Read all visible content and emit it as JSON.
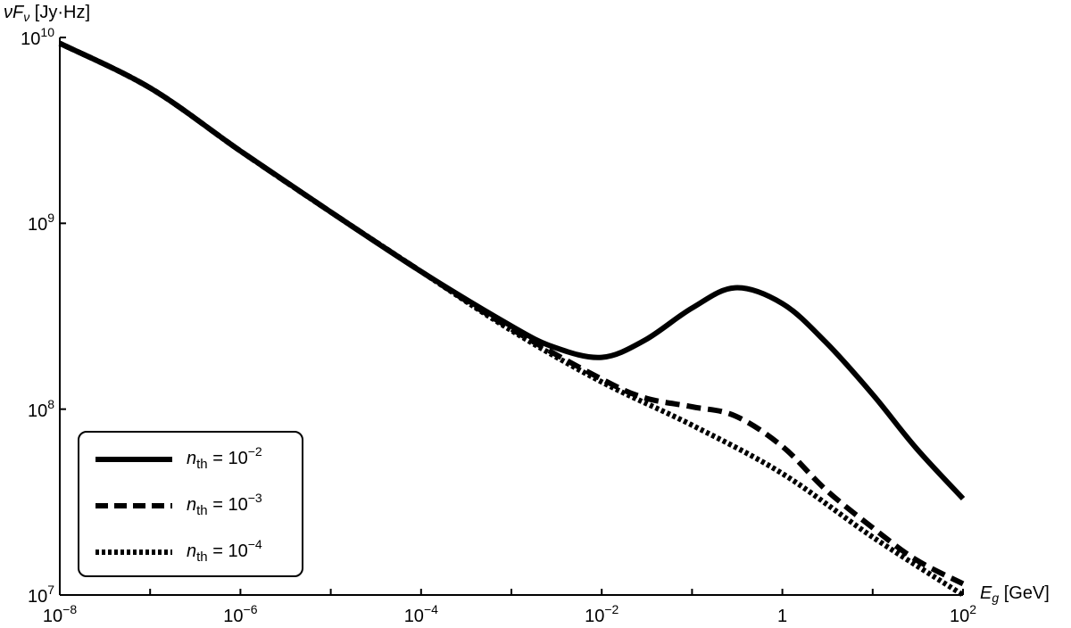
{
  "chart_data": {
    "type": "line",
    "x_scale": "log",
    "y_scale": "log",
    "xlim": [
      1e-08,
      100
    ],
    "ylim": [
      10000000.0,
      10000000000.0
    ],
    "xlabel": {
      "symbol": "E",
      "subscript": "g",
      "unit": "[GeV]"
    },
    "ylabel": {
      "symbol": "νF",
      "subscript": "ν",
      "unit": "[Jy·Hz]"
    },
    "x_ticks": [
      {
        "value": 1e-08,
        "base": "10",
        "exp": "−8"
      },
      {
        "value": 1e-06,
        "base": "10",
        "exp": "−6"
      },
      {
        "value": 0.0001,
        "base": "10",
        "exp": "−4"
      },
      {
        "value": 0.01,
        "base": "10",
        "exp": "−2"
      },
      {
        "value": 1,
        "base": "1",
        "exp": ""
      },
      {
        "value": 100,
        "base": "10",
        "exp": "2"
      }
    ],
    "y_ticks": [
      {
        "value": 10000000.0,
        "base": "10",
        "exp": "7"
      },
      {
        "value": 100000000.0,
        "base": "10",
        "exp": "8"
      },
      {
        "value": 1000000000.0,
        "base": "10",
        "exp": "9"
      },
      {
        "value": 10000000000.0,
        "base": "10",
        "exp": "10"
      }
    ],
    "grid": false,
    "legend_position": "bottom-left",
    "series": [
      {
        "name": "n_th = 10^−2",
        "legend": {
          "var": "n",
          "sub": "th",
          "eq": "= 10",
          "exp": "−2"
        },
        "style": "solid",
        "points": [
          [
            1e-08,
            9300000000.0
          ],
          [
            1e-07,
            5350000000.0
          ],
          [
            1e-06,
            2450000000.0
          ],
          [
            1e-05,
            1150000000.0
          ],
          [
            0.0001,
            550000000.0
          ],
          [
            0.001,
            280000000.0
          ],
          [
            0.003,
            215000000.0
          ],
          [
            0.01,
            190000000.0
          ],
          [
            0.03,
            235000000.0
          ],
          [
            0.1,
            350000000.0
          ],
          [
            0.3,
            450000000.0
          ],
          [
            1,
            370000000.0
          ],
          [
            3,
            230000000.0
          ],
          [
            10,
            120000000.0
          ],
          [
            30,
            62000000.0
          ],
          [
            100,
            33000000.0
          ]
        ]
      },
      {
        "name": "n_th = 10^−3",
        "legend": {
          "var": "n",
          "sub": "th",
          "eq": "= 10",
          "exp": "−3"
        },
        "style": "dashed",
        "points": [
          [
            1e-08,
            9300000000.0
          ],
          [
            1e-07,
            5350000000.0
          ],
          [
            1e-06,
            2450000000.0
          ],
          [
            1e-05,
            1150000000.0
          ],
          [
            0.0001,
            550000000.0
          ],
          [
            0.001,
            270000000.0
          ],
          [
            0.01,
            145000000.0
          ],
          [
            0.03,
            115000000.0
          ],
          [
            0.1,
            103000000.0
          ],
          [
            0.3,
            92000000.0
          ],
          [
            1,
            63000000.0
          ],
          [
            3,
            37000000.0
          ],
          [
            10,
            23000000.0
          ],
          [
            30,
            15500000.0
          ],
          [
            100,
            11500000.0
          ]
        ]
      },
      {
        "name": "n_th = 10^−4",
        "legend": {
          "var": "n",
          "sub": "th",
          "eq": "= 10",
          "exp": "−4"
        },
        "style": "dotted",
        "points": [
          [
            1e-08,
            9300000000.0
          ],
          [
            1e-07,
            5350000000.0
          ],
          [
            1e-06,
            2450000000.0
          ],
          [
            1e-05,
            1150000000.0
          ],
          [
            0.0001,
            550000000.0
          ],
          [
            0.001,
            265000000.0
          ],
          [
            0.01,
            140000000.0
          ],
          [
            0.1,
            82000000.0
          ],
          [
            1,
            45000000.0
          ],
          [
            10,
            20500000.0
          ],
          [
            100,
            10000000.0
          ]
        ]
      }
    ]
  }
}
